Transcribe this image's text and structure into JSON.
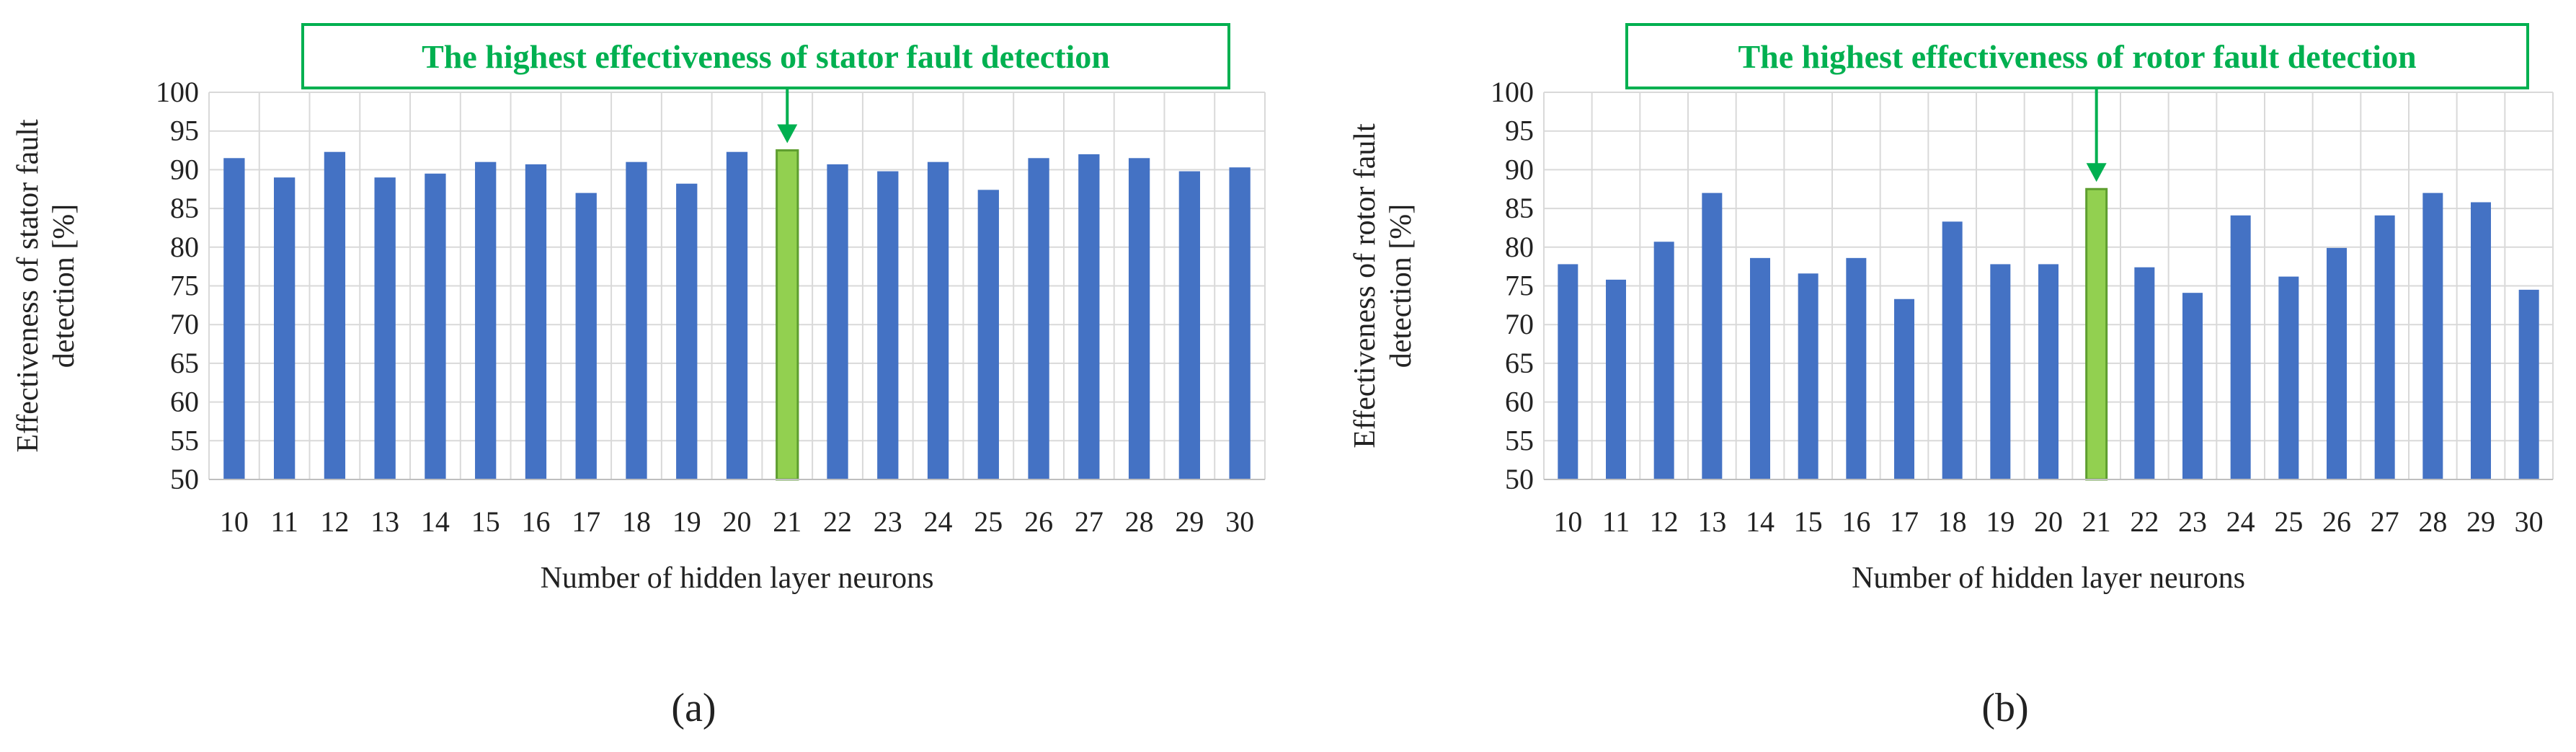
{
  "chart_data": [
    {
      "id": "a",
      "type": "bar",
      "categories": [
        "10",
        "11",
        "12",
        "13",
        "14",
        "15",
        "16",
        "17",
        "18",
        "19",
        "20",
        "21",
        "22",
        "23",
        "24",
        "25",
        "26",
        "27",
        "28",
        "29",
        "30"
      ],
      "values": [
        91.5,
        89.0,
        92.3,
        89.0,
        89.5,
        91.0,
        90.7,
        87.0,
        91.0,
        88.2,
        92.3,
        92.5,
        90.7,
        89.8,
        91.0,
        87.4,
        91.5,
        92.0,
        91.5,
        89.8,
        90.3
      ],
      "highlight_category": "21",
      "bar_color": "#4472C4",
      "highlight_color": "#92D050",
      "callout": "The highest effectiveness of stator fault detection",
      "callout_color": "#00B050",
      "xlabel": "Number of hidden layer neurons",
      "ylabel_lines": [
        "Effectiveness of stator fault",
        "detection  [%]"
      ],
      "ylim": [
        50,
        100
      ],
      "yticks": [
        50,
        55,
        60,
        65,
        70,
        75,
        80,
        85,
        90,
        95,
        100
      ],
      "grid": true,
      "panel_label": "(a)"
    },
    {
      "id": "b",
      "type": "bar",
      "categories": [
        "10",
        "11",
        "12",
        "13",
        "14",
        "15",
        "16",
        "17",
        "18",
        "19",
        "20",
        "21",
        "22",
        "23",
        "24",
        "25",
        "26",
        "27",
        "28",
        "29",
        "30"
      ],
      "values": [
        77.8,
        75.8,
        80.7,
        87.0,
        78.6,
        76.6,
        78.6,
        73.3,
        83.3,
        77.8,
        77.8,
        87.5,
        77.4,
        74.1,
        84.1,
        76.2,
        79.9,
        84.1,
        87.0,
        85.8,
        74.5
      ],
      "highlight_category": "21",
      "bar_color": "#4472C4",
      "highlight_color": "#92D050",
      "callout": "The highest effectiveness of rotor fault detection",
      "callout_color": "#00B050",
      "xlabel": "Number of hidden layer neurons",
      "ylabel_lines": [
        "Effectiveness of rotor fault",
        "detection  [%]"
      ],
      "ylim": [
        50,
        100
      ],
      "yticks": [
        50,
        55,
        60,
        65,
        70,
        75,
        80,
        85,
        90,
        95,
        100
      ],
      "grid": true,
      "panel_label": "(b)"
    }
  ]
}
